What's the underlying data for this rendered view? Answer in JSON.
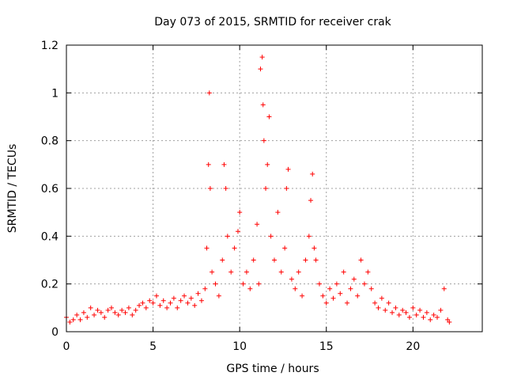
{
  "chart_data": {
    "type": "scatter",
    "title": "Day 073 of 2015, SRMTID for receiver crak",
    "xlabel": "GPS time / hours",
    "ylabel": "SRMTID / TECUs",
    "xlim": [
      0,
      24
    ],
    "ylim": [
      0,
      1.2
    ],
    "xticks": [
      0,
      5,
      10,
      15,
      20
    ],
    "yticks": [
      0,
      0.2,
      0.4,
      0.6,
      0.8,
      1,
      1.2
    ],
    "xtick_labels": [
      "0",
      "5",
      "10",
      "15",
      "20"
    ],
    "ytick_labels": [
      "0",
      "0.2",
      "0.4",
      "0.6",
      "0.8",
      "1",
      "1.2"
    ],
    "grid": true,
    "marker": "plus",
    "color": "#ff0000",
    "series": [
      {
        "name": "SRMTID",
        "x": [
          0.0,
          0.2,
          0.4,
          0.6,
          0.8,
          1.0,
          1.2,
          1.4,
          1.6,
          1.8,
          2.0,
          2.2,
          2.4,
          2.6,
          2.8,
          3.0,
          3.2,
          3.4,
          3.6,
          3.8,
          4.0,
          4.2,
          4.4,
          4.6,
          4.8,
          5.0,
          5.2,
          5.4,
          5.6,
          5.8,
          6.0,
          6.2,
          6.4,
          6.6,
          6.8,
          7.0,
          7.2,
          7.4,
          7.6,
          7.8,
          8.0,
          8.1,
          8.2,
          8.25,
          8.3,
          8.4,
          8.6,
          8.8,
          9.0,
          9.1,
          9.2,
          9.3,
          9.5,
          9.7,
          9.9,
          10.0,
          10.2,
          10.4,
          10.6,
          10.8,
          11.0,
          11.1,
          11.2,
          11.3,
          11.35,
          11.4,
          11.5,
          11.6,
          11.7,
          11.8,
          12.0,
          12.2,
          12.4,
          12.6,
          12.7,
          12.8,
          13.0,
          13.2,
          13.4,
          13.6,
          13.8,
          14.0,
          14.1,
          14.2,
          14.3,
          14.4,
          14.6,
          14.8,
          15.0,
          15.2,
          15.4,
          15.6,
          15.8,
          16.0,
          16.2,
          16.4,
          16.6,
          16.8,
          17.0,
          17.2,
          17.4,
          17.6,
          17.8,
          18.0,
          18.2,
          18.4,
          18.6,
          18.8,
          19.0,
          19.2,
          19.4,
          19.6,
          19.8,
          20.0,
          20.2,
          20.4,
          20.6,
          20.8,
          21.0,
          21.2,
          21.4,
          21.6,
          21.8,
          22.0,
          22.1
        ],
        "y": [
          0.06,
          0.04,
          0.05,
          0.07,
          0.05,
          0.08,
          0.06,
          0.1,
          0.07,
          0.09,
          0.08,
          0.06,
          0.09,
          0.1,
          0.08,
          0.07,
          0.09,
          0.08,
          0.1,
          0.07,
          0.09,
          0.11,
          0.12,
          0.1,
          0.13,
          0.12,
          0.15,
          0.11,
          0.13,
          0.1,
          0.12,
          0.14,
          0.1,
          0.13,
          0.15,
          0.12,
          0.14,
          0.11,
          0.16,
          0.13,
          0.18,
          0.35,
          0.7,
          1.0,
          0.6,
          0.25,
          0.2,
          0.15,
          0.3,
          0.7,
          0.6,
          0.4,
          0.25,
          0.35,
          0.42,
          0.5,
          0.2,
          0.25,
          0.18,
          0.3,
          0.45,
          0.2,
          1.1,
          1.15,
          0.95,
          0.8,
          0.6,
          0.7,
          0.9,
          0.4,
          0.3,
          0.5,
          0.25,
          0.35,
          0.6,
          0.68,
          0.22,
          0.18,
          0.25,
          0.15,
          0.3,
          0.4,
          0.55,
          0.66,
          0.35,
          0.3,
          0.2,
          0.15,
          0.12,
          0.18,
          0.14,
          0.2,
          0.16,
          0.25,
          0.12,
          0.18,
          0.22,
          0.15,
          0.3,
          0.2,
          0.25,
          0.18,
          0.12,
          0.1,
          0.14,
          0.09,
          0.12,
          0.08,
          0.1,
          0.07,
          0.09,
          0.08,
          0.06,
          0.1,
          0.07,
          0.09,
          0.06,
          0.08,
          0.05,
          0.07,
          0.06,
          0.09,
          0.18,
          0.05,
          0.04
        ]
      }
    ]
  }
}
